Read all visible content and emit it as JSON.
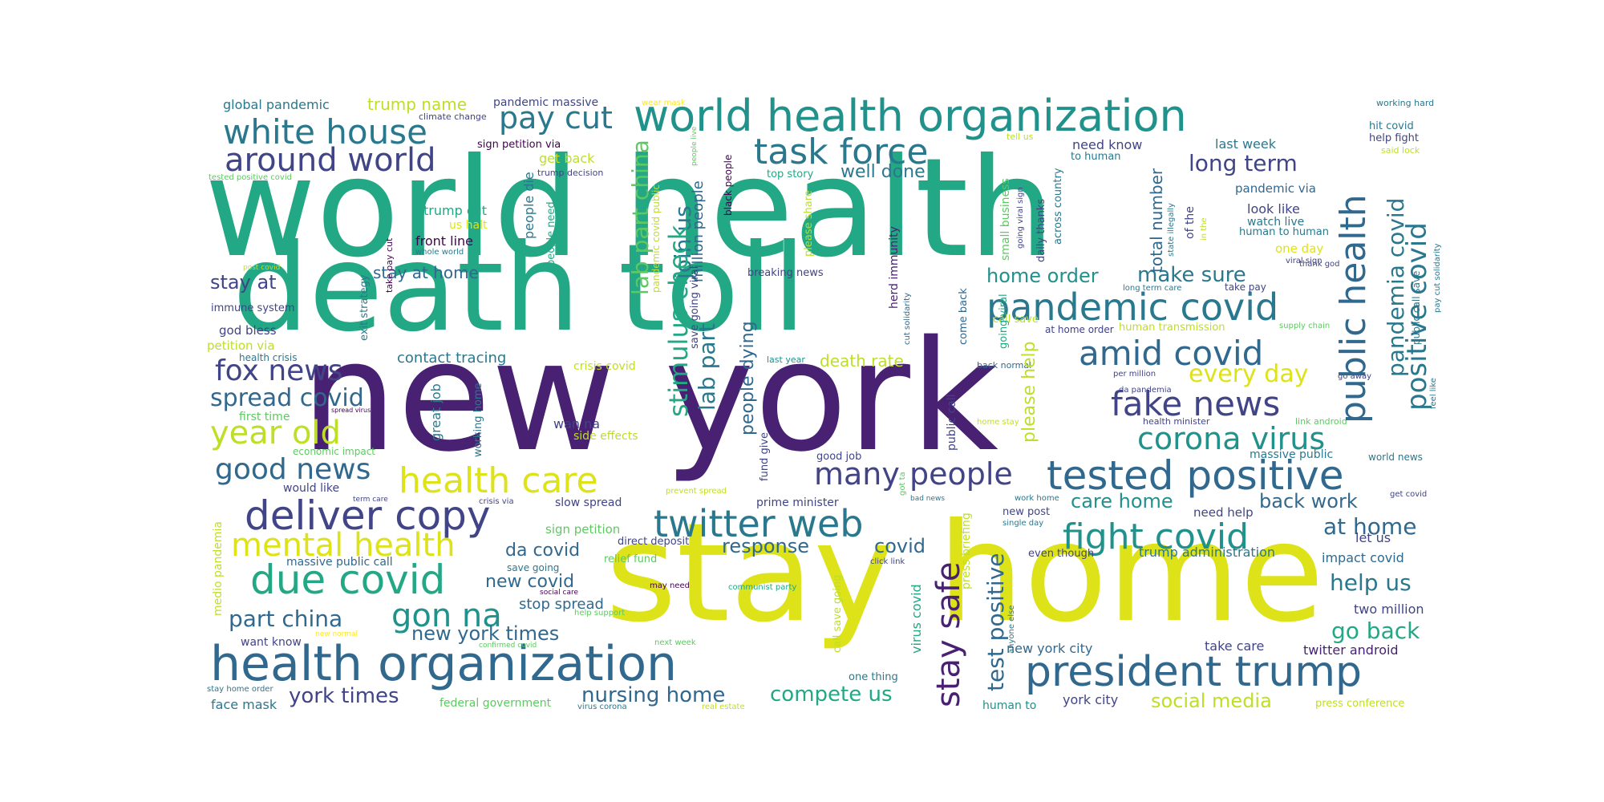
{
  "words": [
    {
      "text": "world health",
      "color": "#22a884"
    },
    {
      "text": "death toll",
      "color": "#22a884"
    },
    {
      "text": "new york",
      "color": "#482173"
    },
    {
      "text": "stay home",
      "color": "#dde318"
    },
    {
      "text": "world health organization",
      "color": "#21918c"
    },
    {
      "text": "health organization",
      "color": "#31688e"
    },
    {
      "text": "president trump",
      "color": "#31688e"
    },
    {
      "text": "tested positive",
      "color": "#31688e"
    },
    {
      "text": "pandemic covid",
      "color": "#2a788e"
    },
    {
      "text": "twitter web",
      "color": "#2a788e"
    },
    {
      "text": "deliver copy",
      "color": "#414487"
    },
    {
      "text": "due covid",
      "color": "#22a884"
    },
    {
      "text": "health care",
      "color": "#dde318"
    },
    {
      "text": "mental health",
      "color": "#dde318"
    },
    {
      "text": "white house",
      "color": "#2a788e"
    },
    {
      "text": "around world",
      "color": "#414487"
    },
    {
      "text": "task force",
      "color": "#2a788e"
    },
    {
      "text": "pay cut",
      "color": "#2a788e"
    },
    {
      "text": "amid covid",
      "color": "#31688e"
    },
    {
      "text": "fake news",
      "color": "#414487"
    },
    {
      "text": "corona virus",
      "color": "#21918c"
    },
    {
      "text": "fight covid",
      "color": "#21918c"
    },
    {
      "text": "many people",
      "color": "#414487"
    },
    {
      "text": "fox news",
      "color": "#414487"
    },
    {
      "text": "year old",
      "color": "#bddf26"
    },
    {
      "text": "good news",
      "color": "#31688e"
    },
    {
      "text": "spread covid",
      "color": "#31688e"
    },
    {
      "text": "gon na",
      "color": "#21918c"
    },
    {
      "text": "part china",
      "color": "#31688e"
    },
    {
      "text": "long term",
      "color": "#414487"
    },
    {
      "text": "every day",
      "color": "#dde318"
    },
    {
      "text": "home order",
      "color": "#21918c"
    },
    {
      "text": "make sure",
      "color": "#2a788e"
    },
    {
      "text": "back work",
      "color": "#31688e"
    },
    {
      "text": "care home",
      "color": "#21918c"
    },
    {
      "text": "at home",
      "color": "#31688e"
    },
    {
      "text": "help us",
      "color": "#2a788e"
    },
    {
      "text": "go back",
      "color": "#22a884"
    },
    {
      "text": "social media",
      "color": "#bddf26"
    },
    {
      "text": "nursing home",
      "color": "#31688e"
    },
    {
      "text": "compete us",
      "color": "#22a884"
    },
    {
      "text": "york times",
      "color": "#414487"
    },
    {
      "text": "new york times",
      "color": "#31688e"
    },
    {
      "text": "response",
      "color": "#31688e"
    },
    {
      "text": "covid",
      "color": "#31688e"
    },
    {
      "text": "da covid",
      "color": "#31688e"
    },
    {
      "text": "new covid",
      "color": "#31688e"
    },
    {
      "text": "stop spread",
      "color": "#31688e"
    },
    {
      "text": "stay at home",
      "color": "#31688e"
    },
    {
      "text": "stay at",
      "color": "#414487"
    },
    {
      "text": "contact tracing",
      "color": "#2a788e"
    },
    {
      "text": "well done",
      "color": "#2a788e"
    },
    {
      "text": "death rate",
      "color": "#bddf26"
    },
    {
      "text": "global pandemic",
      "color": "#2a788e"
    },
    {
      "text": "trump name",
      "color": "#bddf26"
    },
    {
      "text": "pandemic massive",
      "color": "#414487"
    },
    {
      "text": "wear mask",
      "color": "#fde725"
    },
    {
      "text": "climate change",
      "color": "#414487"
    },
    {
      "text": "sign petition via",
      "color": "#440154"
    },
    {
      "text": "get back",
      "color": "#bddf26"
    },
    {
      "text": "trump decision",
      "color": "#414487"
    },
    {
      "text": "tested positive covid",
      "color": "#5ec962"
    },
    {
      "text": "trump cut",
      "color": "#22a884"
    },
    {
      "text": "us halt",
      "color": "#dde318"
    },
    {
      "text": "front line",
      "color": "#440154"
    },
    {
      "text": "whole world",
      "color": "#2a788e"
    },
    {
      "text": "post covid",
      "color": "#bddf26"
    },
    {
      "text": "immune system",
      "color": "#414487"
    },
    {
      "text": "god bless",
      "color": "#414487"
    },
    {
      "text": "petition via",
      "color": "#bddf26"
    },
    {
      "text": "health crisis",
      "color": "#2a788e"
    },
    {
      "text": "first time",
      "color": "#5ec962"
    },
    {
      "text": "spread virus",
      "color": "#440154"
    },
    {
      "text": "economic impact",
      "color": "#5ec962"
    },
    {
      "text": "would like",
      "color": "#414487"
    },
    {
      "text": "term care",
      "color": "#414487"
    },
    {
      "text": "crisis via",
      "color": "#414487"
    },
    {
      "text": "slow spread",
      "color": "#414487"
    },
    {
      "text": "prime minister",
      "color": "#414487"
    },
    {
      "text": "sign petition",
      "color": "#5ec962"
    },
    {
      "text": "direct deposit",
      "color": "#414487"
    },
    {
      "text": "relief fund",
      "color": "#5ec962"
    },
    {
      "text": "massive public call",
      "color": "#31688e"
    },
    {
      "text": "save going",
      "color": "#2a788e"
    },
    {
      "text": "social care",
      "color": "#440154"
    },
    {
      "text": "help support",
      "color": "#5ec962"
    },
    {
      "text": "want know",
      "color": "#414487"
    },
    {
      "text": "new normal",
      "color": "#fde725"
    },
    {
      "text": "confirmed covid",
      "color": "#5ec962"
    },
    {
      "text": "next week",
      "color": "#5ec962"
    },
    {
      "text": "stay home order",
      "color": "#2a788e"
    },
    {
      "text": "face mask",
      "color": "#2a788e"
    },
    {
      "text": "federal government",
      "color": "#5ec962"
    },
    {
      "text": "virus corona",
      "color": "#2a788e"
    },
    {
      "text": "real estate",
      "color": "#bddf26"
    },
    {
      "text": "crisis covid",
      "color": "#bddf26"
    },
    {
      "text": "wan na",
      "color": "#414487"
    },
    {
      "text": "side effects",
      "color": "#bddf26"
    },
    {
      "text": "prevent spread",
      "color": "#bddf26"
    },
    {
      "text": "bad news",
      "color": "#2a788e"
    },
    {
      "text": "click link",
      "color": "#414487"
    },
    {
      "text": "may need",
      "color": "#440154"
    },
    {
      "text": "communist party",
      "color": "#22a884"
    },
    {
      "text": "good job",
      "color": "#414487"
    },
    {
      "text": "one thing",
      "color": "#2a788e"
    },
    {
      "text": "breaking news",
      "color": "#414487"
    },
    {
      "text": "last year",
      "color": "#21918c"
    },
    {
      "text": "top story",
      "color": "#22a884"
    },
    {
      "text": "million people",
      "color": "#31688e"
    },
    {
      "text": "join us",
      "color": "#2a788e"
    },
    {
      "text": "lab part china",
      "color": "#5ec962"
    },
    {
      "text": "stimulus check",
      "color": "#22a884"
    },
    {
      "text": "lab part",
      "color": "#2a788e"
    },
    {
      "text": "people dying",
      "color": "#31688e"
    },
    {
      "text": "people die",
      "color": "#2a788e"
    },
    {
      "text": "people need",
      "color": "#22a884"
    },
    {
      "text": "black people",
      "color": "#440154"
    },
    {
      "text": "pandemic covid public",
      "color": "#bddf26"
    },
    {
      "text": "people live",
      "color": "#5ec962"
    },
    {
      "text": "please share",
      "color": "#bddf26"
    },
    {
      "text": "save going viral",
      "color": "#414487"
    },
    {
      "text": "herd immunity",
      "color": "#482173"
    },
    {
      "text": "cut solidarity",
      "color": "#31688e"
    },
    {
      "text": "fund give",
      "color": "#414487"
    },
    {
      "text": "got ta",
      "color": "#5ec962"
    },
    {
      "text": "great job",
      "color": "#2a788e"
    },
    {
      "text": "working home",
      "color": "#2a788e"
    },
    {
      "text": "exit strategy",
      "color": "#2a788e"
    },
    {
      "text": "take pay cut",
      "color": "#440154"
    },
    {
      "text": "pandemic via",
      "color": "#31688e"
    },
    {
      "text": "look like",
      "color": "#414487"
    },
    {
      "text": "watch live",
      "color": "#2a788e"
    },
    {
      "text": "human to human",
      "color": "#2a788e"
    },
    {
      "text": "one day",
      "color": "#dde318"
    },
    {
      "text": "viral sign",
      "color": "#414487"
    },
    {
      "text": "thank god",
      "color": "#414487"
    },
    {
      "text": "long term care",
      "color": "#2a788e"
    },
    {
      "text": "take pay",
      "color": "#414487"
    },
    {
      "text": "human transmission",
      "color": "#bddf26"
    },
    {
      "text": "supply chain",
      "color": "#5ec962"
    },
    {
      "text": "at home order",
      "color": "#414487"
    },
    {
      "text": "per million",
      "color": "#414487"
    },
    {
      "text": "back normal",
      "color": "#31688e"
    },
    {
      "text": "da pandemia",
      "color": "#414487"
    },
    {
      "text": "health minister",
      "color": "#414487"
    },
    {
      "text": "link android",
      "color": "#5ec962"
    },
    {
      "text": "home stay",
      "color": "#bddf26"
    },
    {
      "text": "massive public",
      "color": "#2a788e"
    },
    {
      "text": "work home",
      "color": "#2a788e"
    },
    {
      "text": "single day",
      "color": "#2a788e"
    },
    {
      "text": "new post",
      "color": "#414487"
    },
    {
      "text": "need help",
      "color": "#414487"
    },
    {
      "text": "let us",
      "color": "#414487"
    },
    {
      "text": "even though",
      "color": "#414487"
    },
    {
      "text": "trump administration",
      "color": "#2a788e"
    },
    {
      "text": "impact covid",
      "color": "#31688e"
    },
    {
      "text": "two million",
      "color": "#414487"
    },
    {
      "text": "take care",
      "color": "#414487"
    },
    {
      "text": "twitter android",
      "color": "#482173"
    },
    {
      "text": "new york city",
      "color": "#31688e"
    },
    {
      "text": "york city",
      "color": "#414487"
    },
    {
      "text": "human to",
      "color": "#21918c"
    },
    {
      "text": "press conference",
      "color": "#bddf26"
    },
    {
      "text": "get covid",
      "color": "#414487"
    },
    {
      "text": "world news",
      "color": "#2a788e"
    },
    {
      "text": "go away",
      "color": "#414487"
    },
    {
      "text": "feel like",
      "color": "#2a788e"
    },
    {
      "text": "working hard",
      "color": "#2a788e"
    },
    {
      "text": "hit covid",
      "color": "#2a788e"
    },
    {
      "text": "help fight",
      "color": "#414487"
    },
    {
      "text": "said lock",
      "color": "#bddf26"
    },
    {
      "text": "need know",
      "color": "#414487"
    },
    {
      "text": "to human",
      "color": "#2a788e"
    },
    {
      "text": "last week",
      "color": "#2a788e"
    },
    {
      "text": "tell us",
      "color": "#bddf26"
    },
    {
      "text": "public health",
      "color": "#31688e"
    },
    {
      "text": "pandemia covid",
      "color": "#2a788e"
    },
    {
      "text": "positive covid",
      "color": "#2a788e"
    },
    {
      "text": "public call save",
      "color": "#2a788e"
    },
    {
      "text": "pay cut solidarity",
      "color": "#2a788e"
    },
    {
      "text": "total number",
      "color": "#31688e"
    },
    {
      "text": "of the",
      "color": "#414487"
    },
    {
      "text": "in the",
      "color": "#bddf26"
    },
    {
      "text": "state illegally",
      "color": "#2a788e"
    },
    {
      "text": "daily thanks",
      "color": "#414487"
    },
    {
      "text": "across country",
      "color": "#2a788e"
    },
    {
      "text": "going viral sign",
      "color": "#414487"
    },
    {
      "text": "small business",
      "color": "#5ec962"
    },
    {
      "text": "call save",
      "color": "#bddf26"
    },
    {
      "text": "going viral",
      "color": "#22a884"
    },
    {
      "text": "come back",
      "color": "#31688e"
    },
    {
      "text": "public call",
      "color": "#414487"
    },
    {
      "text": "please help",
      "color": "#bddf26"
    },
    {
      "text": "stay safe",
      "color": "#482173"
    },
    {
      "text": "test positive",
      "color": "#31688e"
    },
    {
      "text": "press briefing",
      "color": "#bddf26"
    },
    {
      "text": "virus covid",
      "color": "#22a884"
    },
    {
      "text": "call save going",
      "color": "#bddf26"
    },
    {
      "text": "anyone else",
      "color": "#2a788e"
    },
    {
      "text": "medio pandemia",
      "color": "#bddf26"
    }
  ]
}
